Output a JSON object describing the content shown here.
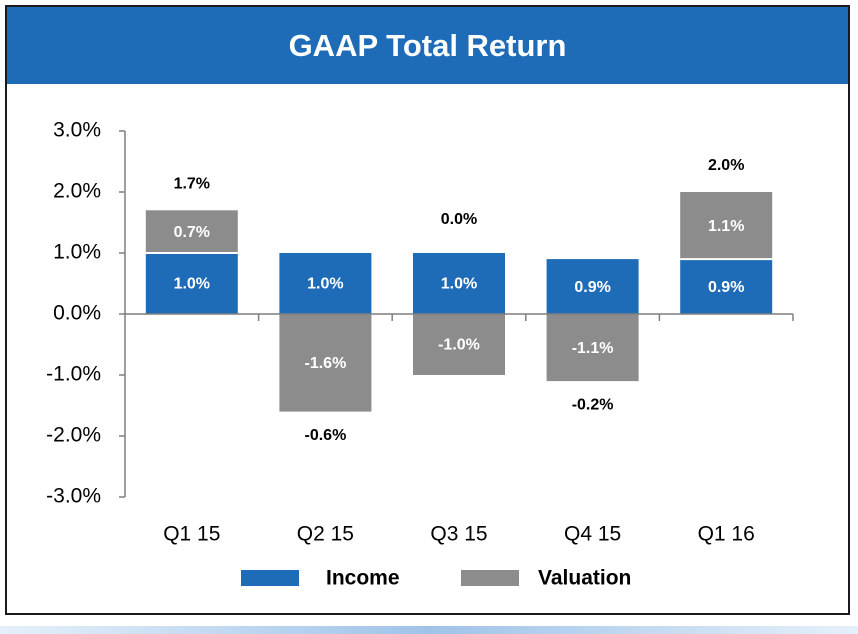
{
  "title": "GAAP Total Return",
  "colors": {
    "title_bg": "#1e6bb8",
    "income": "#1e6bb8",
    "valuation": "#8c8c8c"
  },
  "chart_data": {
    "type": "bar",
    "stacked": true,
    "categories": [
      "Q1 15",
      "Q2 15",
      "Q3 15",
      "Q4 15",
      "Q1 16"
    ],
    "series": [
      {
        "name": "Income",
        "values": [
          1.0,
          1.0,
          1.0,
          0.9,
          0.9
        ],
        "labels": [
          "1.0%",
          "1.0%",
          "1.0%",
          "0.9%",
          "0.9%"
        ]
      },
      {
        "name": "Valuation",
        "values": [
          0.7,
          -1.6,
          -1.0,
          -1.1,
          1.1
        ],
        "labels": [
          "0.7%",
          "-1.6%",
          "-1.0%",
          "-1.1%",
          "1.1%"
        ]
      }
    ],
    "totals": [
      1.7,
      -0.6,
      0.0,
      -0.2,
      2.0
    ],
    "total_labels": [
      "1.7%",
      "-0.6%",
      "0.0%",
      "-0.2%",
      "2.0%"
    ],
    "ylim": [
      -3.0,
      3.0
    ],
    "yticks": [
      3.0,
      2.0,
      1.0,
      0.0,
      -1.0,
      -2.0,
      -3.0
    ],
    "ytick_labels": [
      "3.0%",
      "2.0%",
      "1.0%",
      "0.0%",
      "-1.0%",
      "-2.0%",
      "-3.0%"
    ],
    "xlabel": "",
    "ylabel": "",
    "grid": false,
    "legend_position": "bottom"
  }
}
